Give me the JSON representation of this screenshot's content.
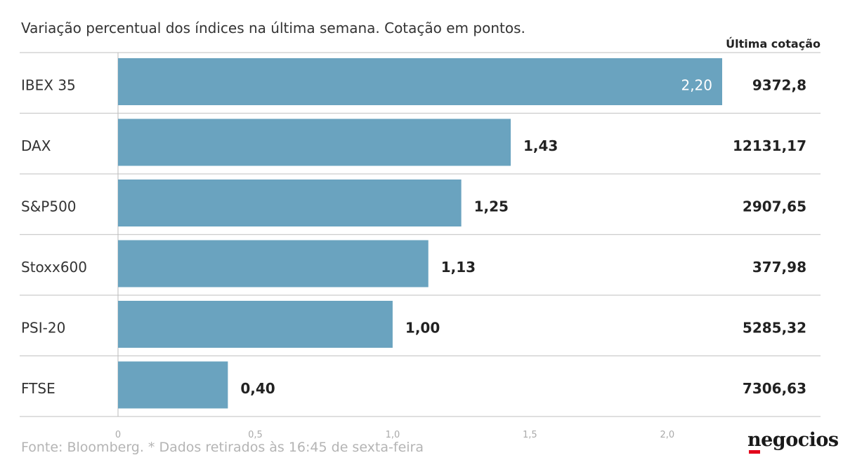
{
  "subtitle": "Variação percentual dos índices na última semana. Cotação em pontos.",
  "column_header": "Última cotação",
  "footer": {
    "source": "Fonte: Bloomberg.  * Dados retirados às 16:45 de sexta-feira"
  },
  "brand": {
    "name": "negocios"
  },
  "colors": {
    "bar": "#6aa3bf",
    "inside_label": "#ffffff",
    "grid": "#cccccc",
    "tick": "#aaaaaa",
    "accent": "#e3001b"
  },
  "chart_data": {
    "type": "bar",
    "orientation": "horizontal",
    "title": "",
    "xlabel": "",
    "ylabel": "",
    "categories": [
      "IBEX 35",
      "DAX",
      "S&P500",
      "Stoxx600",
      "PSI-20",
      "FTSE"
    ],
    "values": [
      2.2,
      1.43,
      1.25,
      1.13,
      1.0,
      0.4
    ],
    "value_labels": [
      "2,20",
      "1,43",
      "1,25",
      "1,13",
      "1,00",
      "0,40"
    ],
    "last_quote": [
      "9372,8",
      "12131,17",
      "2907,65",
      "377,98",
      "5285,32",
      "7306,63"
    ],
    "xlim": [
      0,
      2.2
    ],
    "xticks": [
      0,
      0.5,
      1.0,
      1.5,
      2.0
    ],
    "xtick_labels": [
      "0",
      "0,5",
      "1,0",
      "1,5",
      "2,0"
    ],
    "grid": false
  }
}
